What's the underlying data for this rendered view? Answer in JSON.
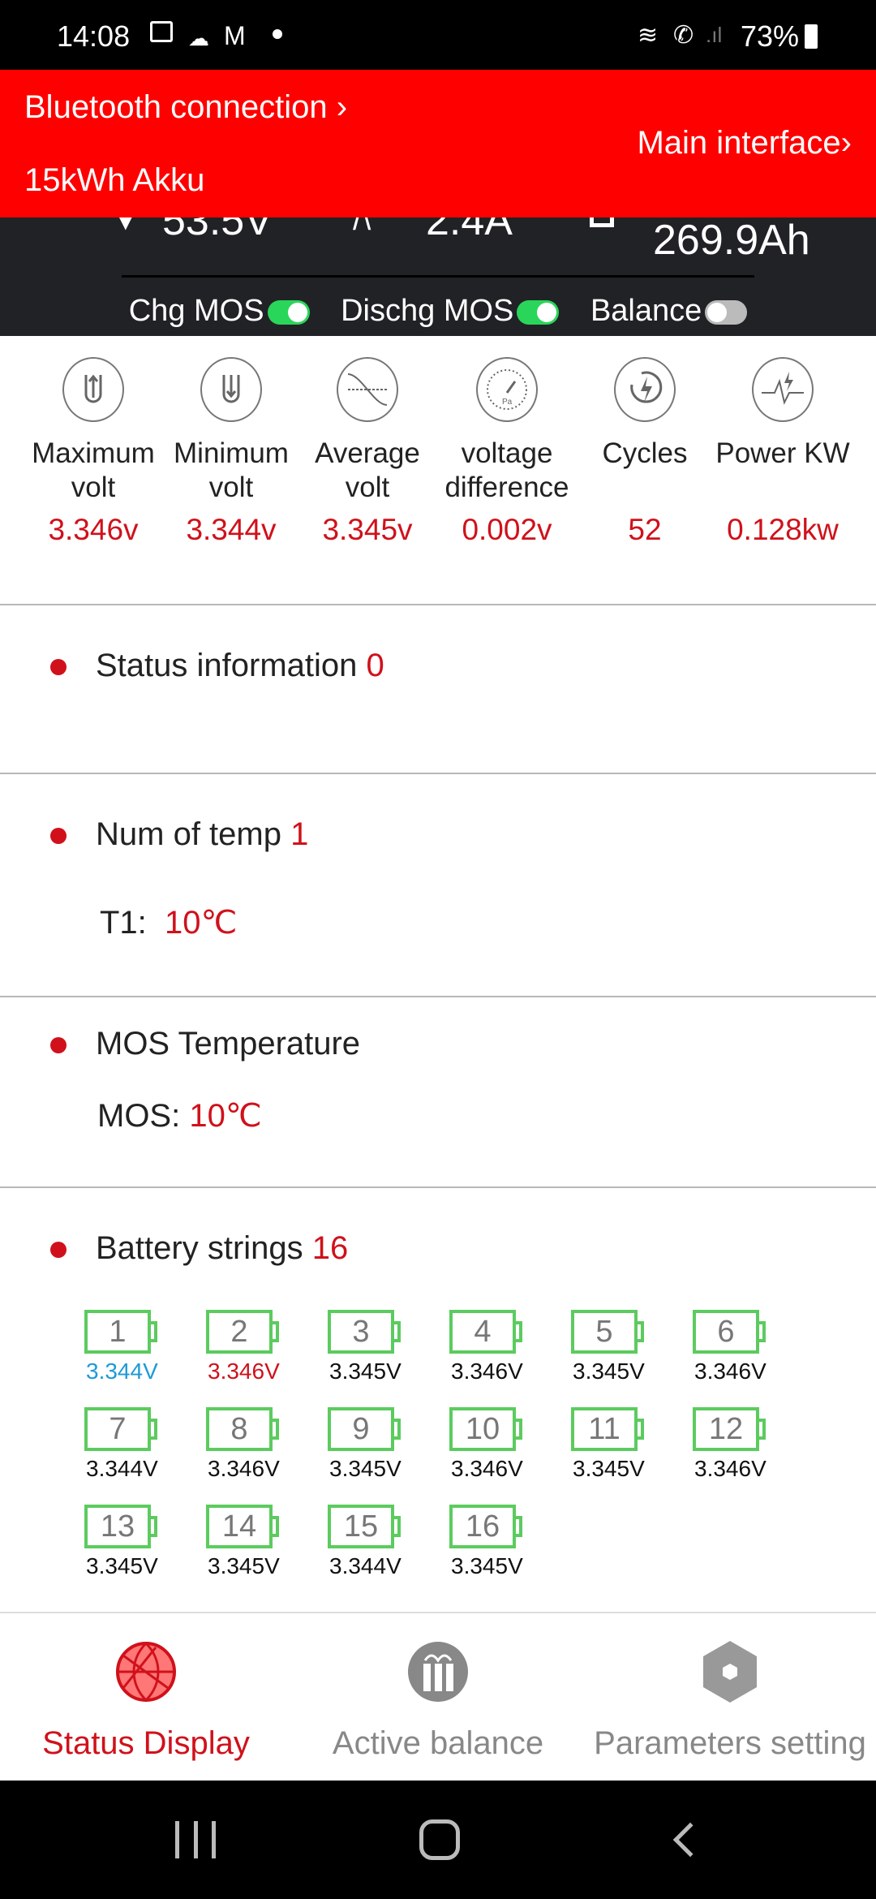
{
  "status_bar": {
    "time": "14:08",
    "battery": "73%"
  },
  "header": {
    "bluetooth": "Bluetooth connection ›",
    "device": "15kWh Akku",
    "main_interface": "Main interface›"
  },
  "summary": {
    "voltage": "53.5V",
    "current": "2.4A",
    "capacity": "269.9Ah"
  },
  "switches": [
    {
      "label": "Chg MOS",
      "on": true
    },
    {
      "label": "Dischg MOS",
      "on": true
    },
    {
      "label": "Balance",
      "on": false
    }
  ],
  "metrics": [
    {
      "icon": "max-volt-icon",
      "label": "Maximum volt",
      "value": "3.346v"
    },
    {
      "icon": "min-volt-icon",
      "label": "Minimum volt",
      "value": "3.344v"
    },
    {
      "icon": "avg-volt-icon",
      "label": "Average volt",
      "value": "3.345v"
    },
    {
      "icon": "gauge-icon",
      "label": "voltage difference",
      "value": "0.002v"
    },
    {
      "icon": "cycles-icon",
      "label": "Cycles",
      "value": "52"
    },
    {
      "icon": "power-icon",
      "label": "Power KW",
      "value": "0.128kw"
    }
  ],
  "status_info": {
    "label": "Status information",
    "value": "0"
  },
  "temp": {
    "label": "Num of temp",
    "count": "1",
    "t1_label": "T1:",
    "t1_value": "10℃"
  },
  "mos": {
    "label": "MOS Temperature",
    "mos_label": "MOS:",
    "mos_value": "10℃"
  },
  "strings": {
    "label": "Battery strings",
    "count": "16",
    "cells": [
      {
        "n": "1",
        "v": "3.344V",
        "state": "min"
      },
      {
        "n": "2",
        "v": "3.346V",
        "state": "max"
      },
      {
        "n": "3",
        "v": "3.345V"
      },
      {
        "n": "4",
        "v": "3.346V"
      },
      {
        "n": "5",
        "v": "3.345V"
      },
      {
        "n": "6",
        "v": "3.346V"
      },
      {
        "n": "7",
        "v": "3.344V"
      },
      {
        "n": "8",
        "v": "3.346V"
      },
      {
        "n": "9",
        "v": "3.345V"
      },
      {
        "n": "10",
        "v": "3.346V"
      },
      {
        "n": "11",
        "v": "3.345V"
      },
      {
        "n": "12",
        "v": "3.346V"
      },
      {
        "n": "13",
        "v": "3.345V"
      },
      {
        "n": "14",
        "v": "3.345V"
      },
      {
        "n": "15",
        "v": "3.344V"
      },
      {
        "n": "16",
        "v": "3.345V"
      }
    ]
  },
  "colors": {
    "accent": "#d0111b",
    "header": "#ff0000",
    "cell_border": "#5ccb5f",
    "min": "#1e9ad6",
    "toggle_on": "#2ad65a"
  },
  "bottom_nav": [
    {
      "label": "Status Display",
      "active": true
    },
    {
      "label": "Active balance",
      "active": false
    },
    {
      "label": "Parameters setting",
      "active": false
    }
  ]
}
